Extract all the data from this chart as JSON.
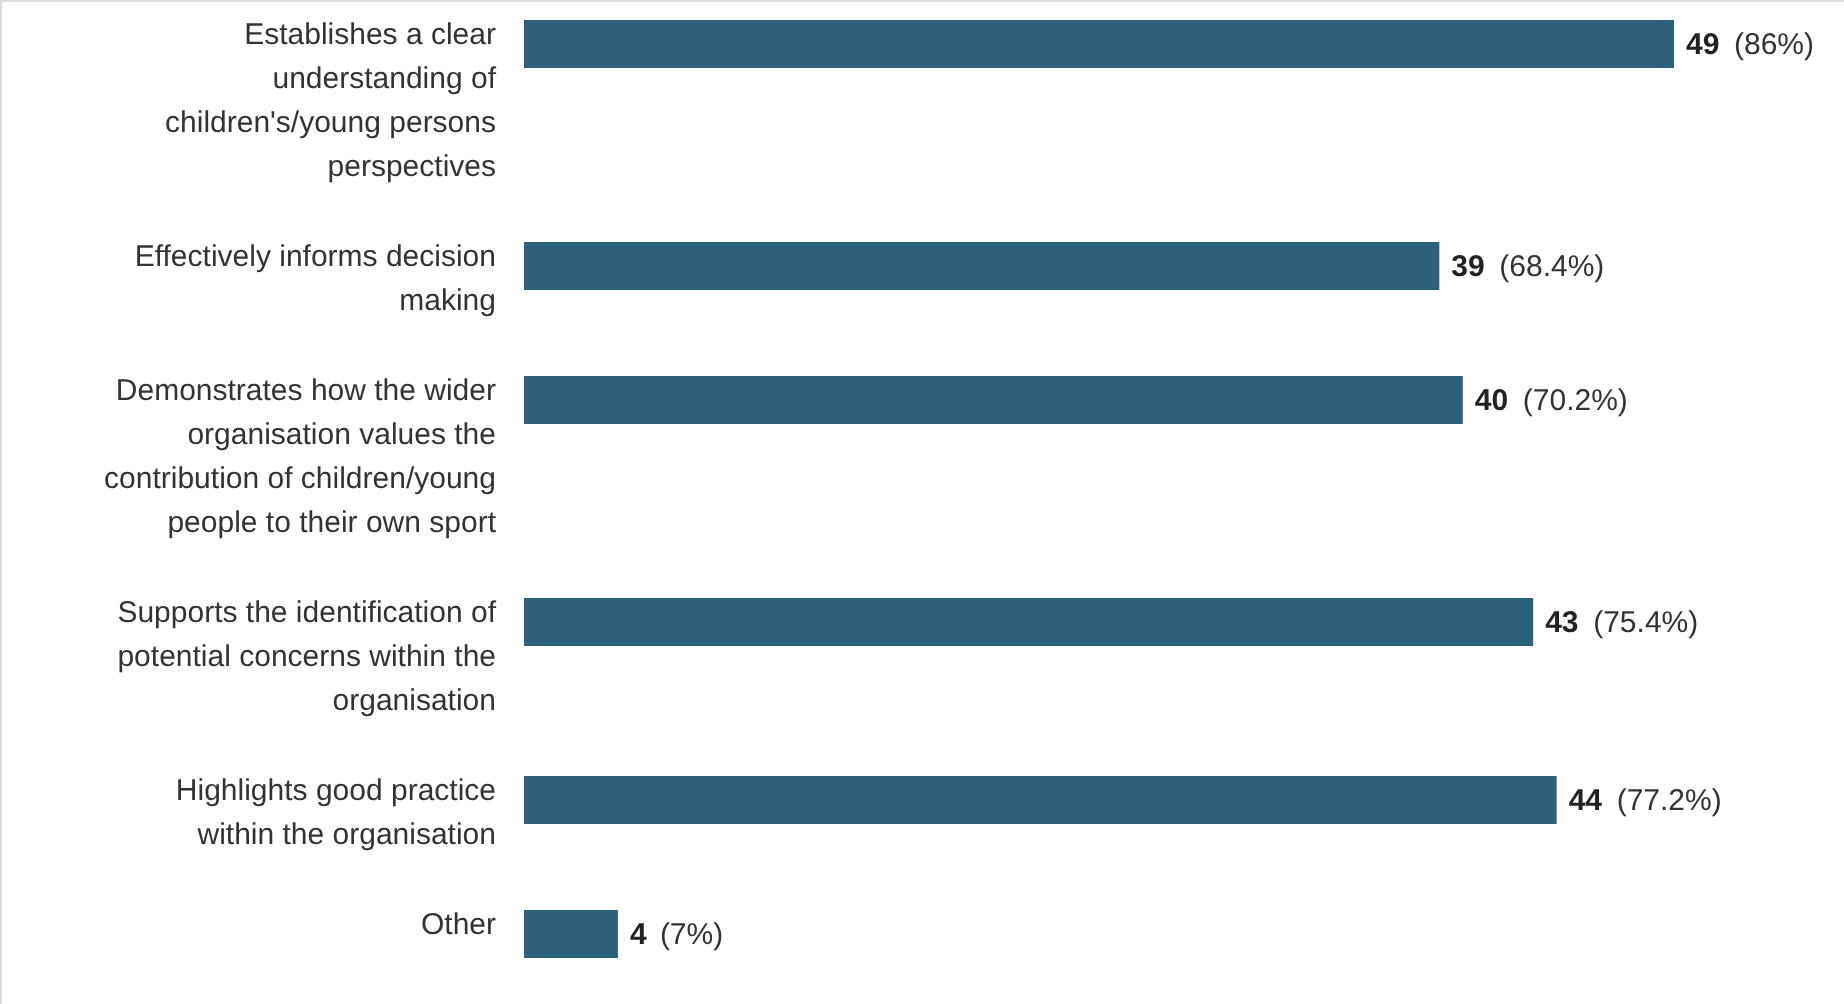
{
  "chart_data": {
    "type": "bar",
    "orientation": "horizontal",
    "categories": [
      "Establishes a clear understanding of children's/young persons perspectives",
      "Effectively informs decision making",
      "Demonstrates how the wider organisation values the contribution of children/young people to their own sport",
      "Supports the identification of potential concerns within the organisation",
      "Highlights good practice within the organisation",
      "Other"
    ],
    "values": [
      49,
      39,
      40,
      43,
      44,
      4
    ],
    "color": "#2d6079",
    "data_labels": true,
    "annotations": [
      "(86%)",
      "(68.4%)",
      "(70.2%)",
      "(75.4%)",
      "(77.2%)",
      "(7%)"
    ]
  }
}
